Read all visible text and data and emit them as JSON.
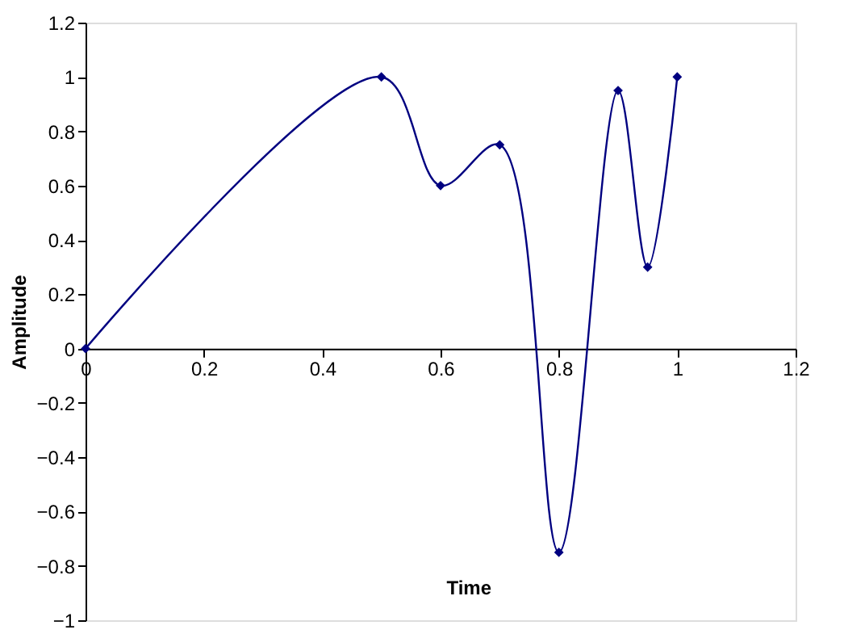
{
  "chart_data": {
    "type": "line",
    "xlabel": "Time",
    "ylabel": "Amplitude",
    "x": [
      0,
      0.5,
      0.6,
      0.7,
      0.8,
      0.9,
      0.95,
      1
    ],
    "series": [
      {
        "color": "#000080",
        "values": [
          0,
          1,
          0.6,
          0.75,
          -0.75,
          0.95,
          0.3,
          1
        ]
      }
    ],
    "xlim": [
      0,
      1.2
    ],
    "xticks": [
      0,
      0.2,
      0.4,
      0.6,
      0.8,
      1,
      1.2
    ],
    "ylim": [
      -1,
      1.2
    ],
    "yticks": [
      -1,
      -0.8,
      -0.6,
      -0.4,
      -0.2,
      0,
      0.2,
      0.4,
      0.6,
      0.8,
      1,
      1.2
    ],
    "grid": false,
    "marker": "diamond",
    "line_style": "solid"
  }
}
